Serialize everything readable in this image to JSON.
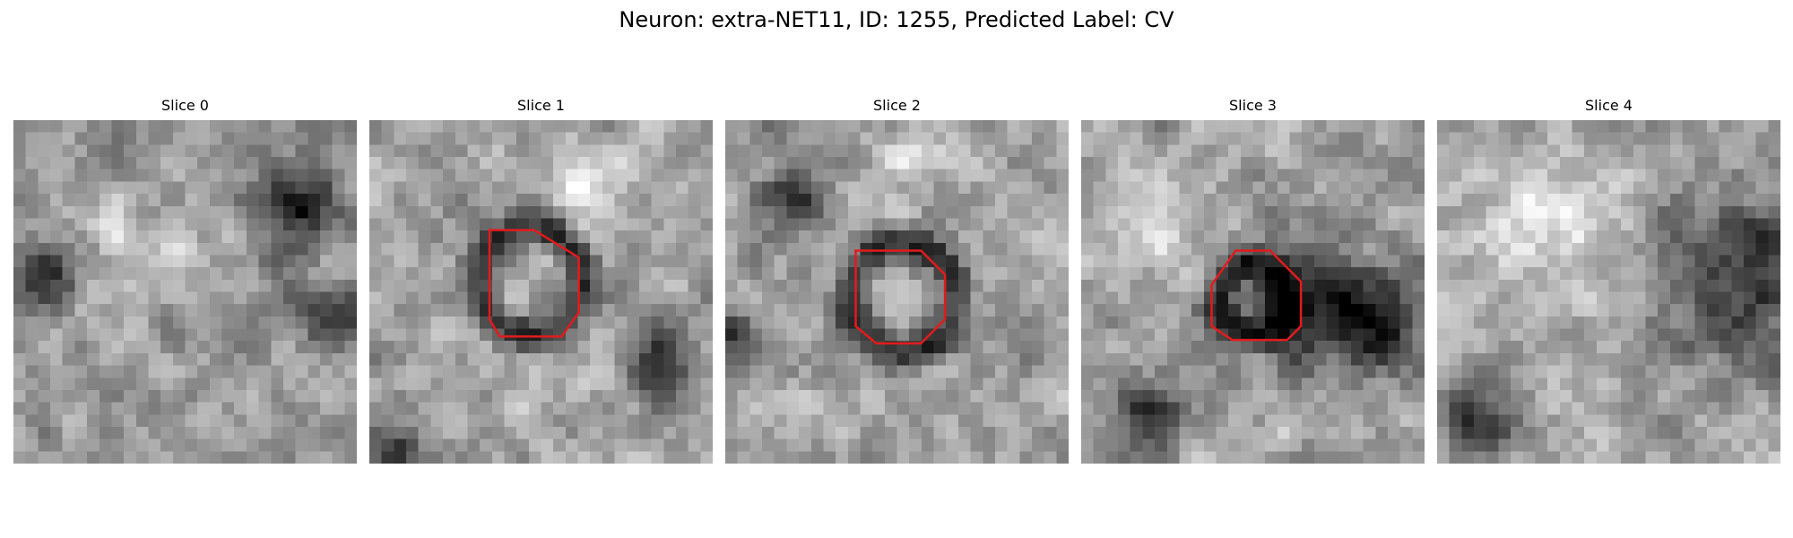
{
  "figure": {
    "title": "Neuron: extra-NET11, ID: 1255, Predicted Label: CV"
  },
  "roi_color": "#e41a1c",
  "panels": [
    {
      "title": "Slice 0",
      "has_roi": false,
      "seed": 11,
      "base_gray": 150,
      "dark_spots": [
        [
          0.83,
          0.25,
          0.08
        ],
        [
          0.08,
          0.45,
          0.07
        ],
        [
          0.95,
          0.6,
          0.06
        ]
      ],
      "bright_spots": [
        [
          0.35,
          0.35,
          0.12
        ]
      ]
    },
    {
      "title": "Slice 1",
      "has_roi": true,
      "seed": 23,
      "base_gray": 165,
      "ring": [
        0.47,
        0.47,
        0.15
      ],
      "dark_spots": [
        [
          0.05,
          0.95,
          0.07
        ],
        [
          0.85,
          0.7,
          0.07
        ]
      ],
      "bright_spots": [
        [
          0.65,
          0.18,
          0.08
        ]
      ]
    },
    {
      "title": "Slice 2",
      "has_roi": true,
      "seed": 37,
      "base_gray": 160,
      "ring": [
        0.52,
        0.52,
        0.16
      ],
      "dark_spots": [
        [
          0.2,
          0.22,
          0.06
        ],
        [
          0.0,
          0.62,
          0.05
        ]
      ],
      "bright_spots": [
        [
          0.55,
          0.12,
          0.08
        ]
      ]
    },
    {
      "title": "Slice 3",
      "has_roi": true,
      "seed": 41,
      "base_gray": 160,
      "ring": [
        0.5,
        0.52,
        0.1
      ],
      "dark_spots": [
        [
          0.67,
          0.55,
          0.12
        ],
        [
          0.87,
          0.6,
          0.1
        ],
        [
          0.2,
          0.85,
          0.07
        ]
      ],
      "bright_spots": [
        [
          0.2,
          0.3,
          0.1
        ]
      ]
    },
    {
      "title": "Slice 4",
      "has_roi": false,
      "seed": 53,
      "base_gray": 170,
      "dark_spots": [
        [
          0.9,
          0.45,
          0.18
        ],
        [
          0.12,
          0.88,
          0.08
        ]
      ],
      "bright_spots": [
        [
          0.35,
          0.3,
          0.15
        ]
      ]
    }
  ],
  "rois": [
    {
      "slice": 1,
      "polygon": [
        [
          0.35,
          0.32
        ],
        [
          0.48,
          0.32
        ],
        [
          0.61,
          0.4
        ],
        [
          0.61,
          0.56
        ],
        [
          0.56,
          0.63
        ],
        [
          0.38,
          0.63
        ],
        [
          0.35,
          0.58
        ]
      ]
    },
    {
      "slice": 2,
      "polygon": [
        [
          0.38,
          0.38
        ],
        [
          0.57,
          0.38
        ],
        [
          0.64,
          0.45
        ],
        [
          0.64,
          0.58
        ],
        [
          0.57,
          0.65
        ],
        [
          0.44,
          0.65
        ],
        [
          0.38,
          0.6
        ]
      ]
    },
    {
      "slice": 3,
      "polygon": [
        [
          0.45,
          0.38
        ],
        [
          0.55,
          0.38
        ],
        [
          0.64,
          0.47
        ],
        [
          0.64,
          0.6
        ],
        [
          0.6,
          0.64
        ],
        [
          0.44,
          0.64
        ],
        [
          0.38,
          0.6
        ],
        [
          0.38,
          0.48
        ]
      ]
    }
  ]
}
